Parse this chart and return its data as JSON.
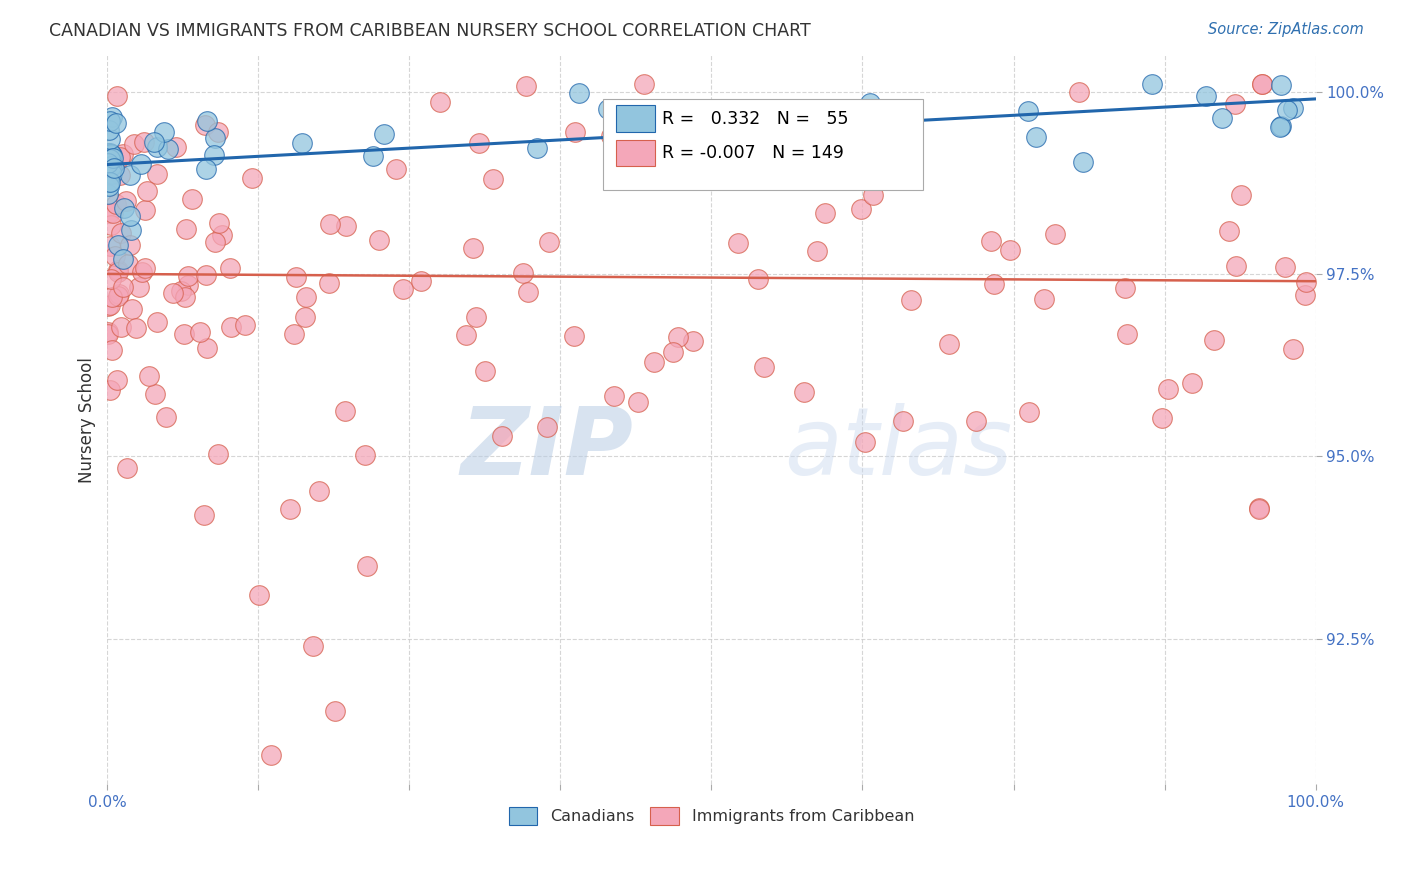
{
  "title": "CANADIAN VS IMMIGRANTS FROM CARIBBEAN NURSERY SCHOOL CORRELATION CHART",
  "source": "Source: ZipAtlas.com",
  "ylabel": "Nursery School",
  "legend_label1": "Canadians",
  "legend_label2": "Immigrants from Caribbean",
  "r_canadian": 0.332,
  "n_canadian": 55,
  "r_immigrant": -0.007,
  "n_immigrant": 149,
  "xlim": [
    0.0,
    1.0
  ],
  "ylim": [
    0.905,
    1.005
  ],
  "yticks": [
    0.925,
    0.95,
    0.975,
    1.0
  ],
  "ytick_labels": [
    "92.5%",
    "95.0%",
    "97.5%",
    "100.0%"
  ],
  "color_canadian": "#92c5de",
  "color_immigrant": "#f4a7b9",
  "trendline_canadian": "#2166ac",
  "trendline_immigrant": "#d6604d",
  "watermark_zip": "ZIP",
  "watermark_atlas": "atlas",
  "background_color": "#ffffff",
  "title_color": "#333333",
  "source_color": "#3070b0",
  "axis_label_color": "#4472c4",
  "grid_color": "#cccccc",
  "legend_box_color": "#dddddd"
}
